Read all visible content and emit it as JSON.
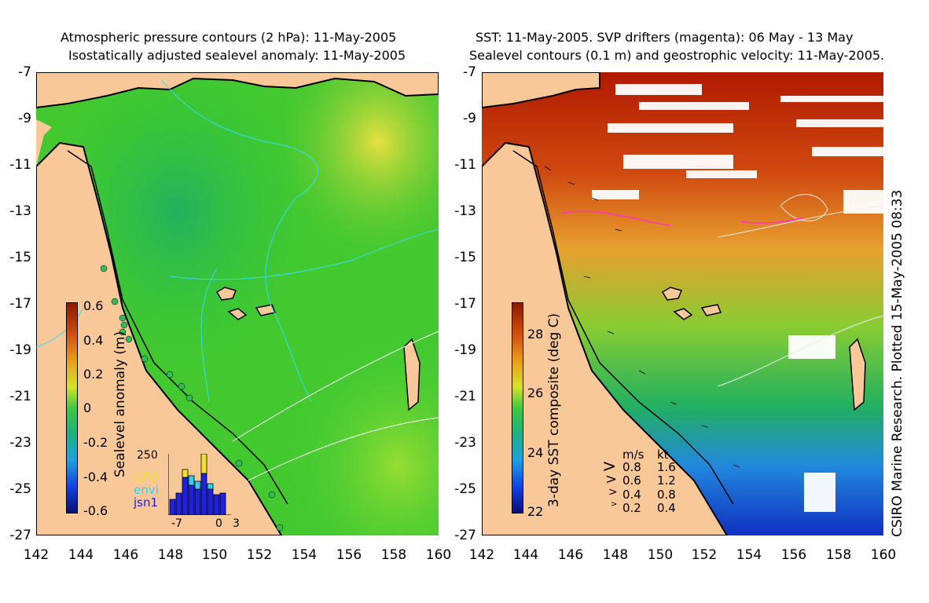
{
  "left_panel": {
    "title_line1": "Atmospheric pressure contours (2 hPa): 11-May-2005",
    "title_line2": "Isostatically adjusted sealevel anomaly: 11-May-2005",
    "colorbar_label": "Sealevel anomaly (m)",
    "colorbar_ticks": [
      "0.6",
      "0.4",
      "0.2",
      "0",
      "-0.2",
      "-0.4",
      "-0.6"
    ],
    "inset": {
      "ymax_label": "250",
      "x_ticks": [
        "-7",
        "0",
        "3"
      ],
      "legend": [
        "GFO",
        "envi",
        "jsn1"
      ],
      "legend_colors": [
        "#f0e030",
        "#30d0f0",
        "#2020e0"
      ]
    }
  },
  "right_panel": {
    "title_line1": "SST: 11-May-2005. SVP drifters (magenta): 06 May - 13 May",
    "title_line2": "Sealevel contours (0.1 m) and geostrophic velocity: 11-May-2005.",
    "colorbar_label": "3-day SST composite (deg C)",
    "colorbar_ticks": [
      "28",
      "26",
      "24",
      "22"
    ],
    "velocity_legend": {
      "header_ms": "m/s",
      "header_kt": "kt",
      "rows": [
        {
          "ms": "0.8",
          "kt": "1.6"
        },
        {
          "ms": "0.6",
          "kt": "1.2"
        },
        {
          "ms": "0.4",
          "kt": "0.8"
        },
        {
          "ms": "0.2",
          "kt": "0.4"
        }
      ]
    },
    "credit": "CSIRO Marine Research. Plotted 15-May-2005 08:33"
  },
  "axes": {
    "y_ticks": [
      "-7",
      "-9",
      "-11",
      "-13",
      "-15",
      "-17",
      "-19",
      "-21",
      "-23",
      "-25",
      "-27"
    ],
    "x_ticks": [
      "142",
      "144",
      "146",
      "148",
      "150",
      "152",
      "154",
      "156",
      "158",
      "160"
    ]
  },
  "colors": {
    "land": "#f9c898",
    "ocean_green": "#33cc33",
    "sst_warm": "#b01a00",
    "sst_orange": "#e89a20"
  }
}
